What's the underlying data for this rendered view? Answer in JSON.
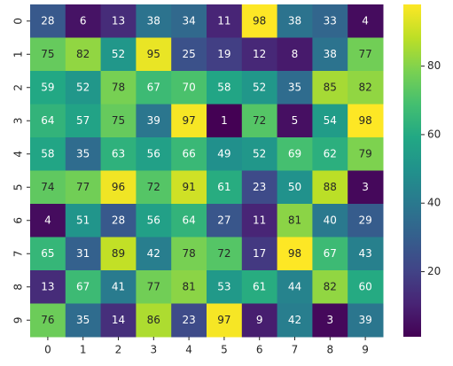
{
  "chart_data": {
    "type": "heatmap",
    "colormap": "viridis",
    "x": [
      "0",
      "1",
      "2",
      "3",
      "4",
      "5",
      "6",
      "7",
      "8",
      "9"
    ],
    "y": [
      "0",
      "1",
      "2",
      "3",
      "4",
      "5",
      "6",
      "7",
      "8",
      "9"
    ],
    "values": [
      [
        28,
        6,
        13,
        38,
        34,
        11,
        98,
        38,
        33,
        4
      ],
      [
        75,
        82,
        52,
        95,
        25,
        19,
        12,
        8,
        38,
        77
      ],
      [
        59,
        52,
        78,
        67,
        70,
        58,
        52,
        35,
        85,
        82
      ],
      [
        64,
        57,
        75,
        39,
        97,
        1,
        72,
        5,
        54,
        98
      ],
      [
        58,
        35,
        63,
        56,
        66,
        49,
        52,
        69,
        62,
        79
      ],
      [
        74,
        77,
        96,
        72,
        91,
        61,
        23,
        50,
        88,
        3
      ],
      [
        4,
        51,
        28,
        56,
        64,
        27,
        11,
        81,
        40,
        29
      ],
      [
        65,
        31,
        89,
        42,
        78,
        72,
        17,
        98,
        67,
        43
      ],
      [
        13,
        67,
        41,
        77,
        81,
        53,
        61,
        44,
        82,
        60
      ],
      [
        76,
        35,
        14,
        86,
        23,
        97,
        9,
        42,
        3,
        39
      ]
    ],
    "vlim": [
      1,
      98
    ],
    "colorbar_ticks": [
      20,
      40,
      60,
      80
    ]
  }
}
